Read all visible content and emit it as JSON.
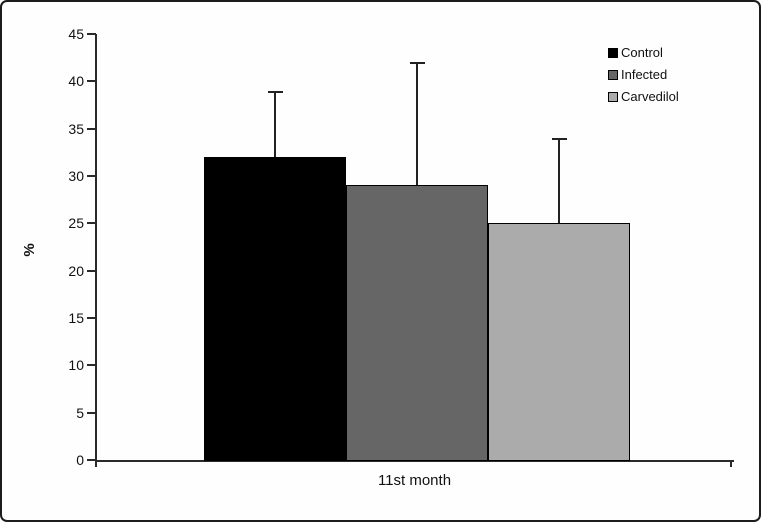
{
  "chart_data": {
    "type": "bar",
    "title": "",
    "categories": [
      "11st month"
    ],
    "series": [
      {
        "name": "Control",
        "values": [
          32
        ],
        "errors_plus": [
          7
        ],
        "color": "#000000"
      },
      {
        "name": "Infected",
        "values": [
          29
        ],
        "errors_plus": [
          13
        ],
        "color": "#666666"
      },
      {
        "name": "Carvedilol",
        "values": [
          25
        ],
        "errors_plus": [
          9
        ],
        "color": "#ababab"
      }
    ],
    "xlabel": "",
    "ylabel": "%",
    "ylim": [
      0,
      45
    ],
    "yticks": [
      0,
      5,
      10,
      15,
      20,
      25,
      30,
      35,
      40,
      45
    ],
    "grid": false,
    "legend_position": "top-right",
    "error_bars": "upper-only",
    "axis_color": "#2a2a2a",
    "background_color": "#fefefe"
  }
}
